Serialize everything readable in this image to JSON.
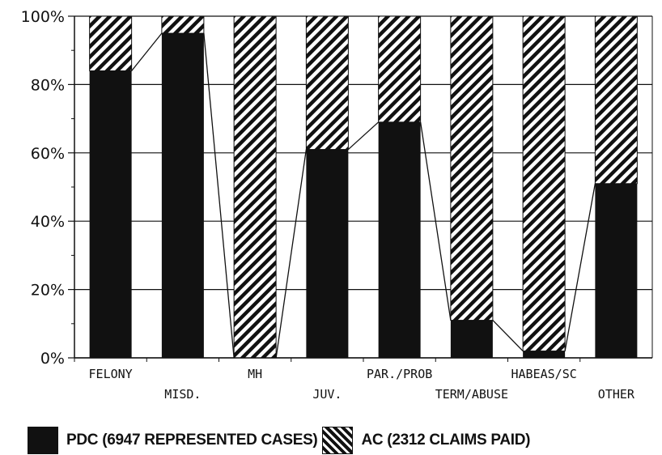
{
  "chart_data": {
    "type": "bar",
    "stacked": true,
    "percent": true,
    "categories": [
      "FELONY",
      "MISD.",
      "MH",
      "JUV.",
      "PAR./PROB",
      "TERM/ABUSE",
      "HABEAS/SC",
      "OTHER"
    ],
    "series": [
      {
        "name": "PDC (6947 REPRESENTED CASES)",
        "values": [
          84,
          95,
          0,
          61,
          69,
          11,
          2,
          51
        ],
        "color": "#111111",
        "pattern": "solid"
      },
      {
        "name": "AC (2312 CLAIMS PAID)",
        "values": [
          16,
          5,
          100,
          39,
          31,
          89,
          98,
          49
        ],
        "color": "#111111",
        "pattern": "diagonal-hatch"
      }
    ],
    "ylim": [
      0,
      100
    ],
    "yticks": [
      "0%",
      "20%",
      "40%",
      "60%",
      "80%",
      "100%"
    ],
    "grid": true,
    "legend_position": "bottom"
  },
  "legend": {
    "pdc_label": "PDC (6947 REPRESENTED CASES)",
    "ac_label": "AC (2312 CLAIMS PAID)"
  }
}
